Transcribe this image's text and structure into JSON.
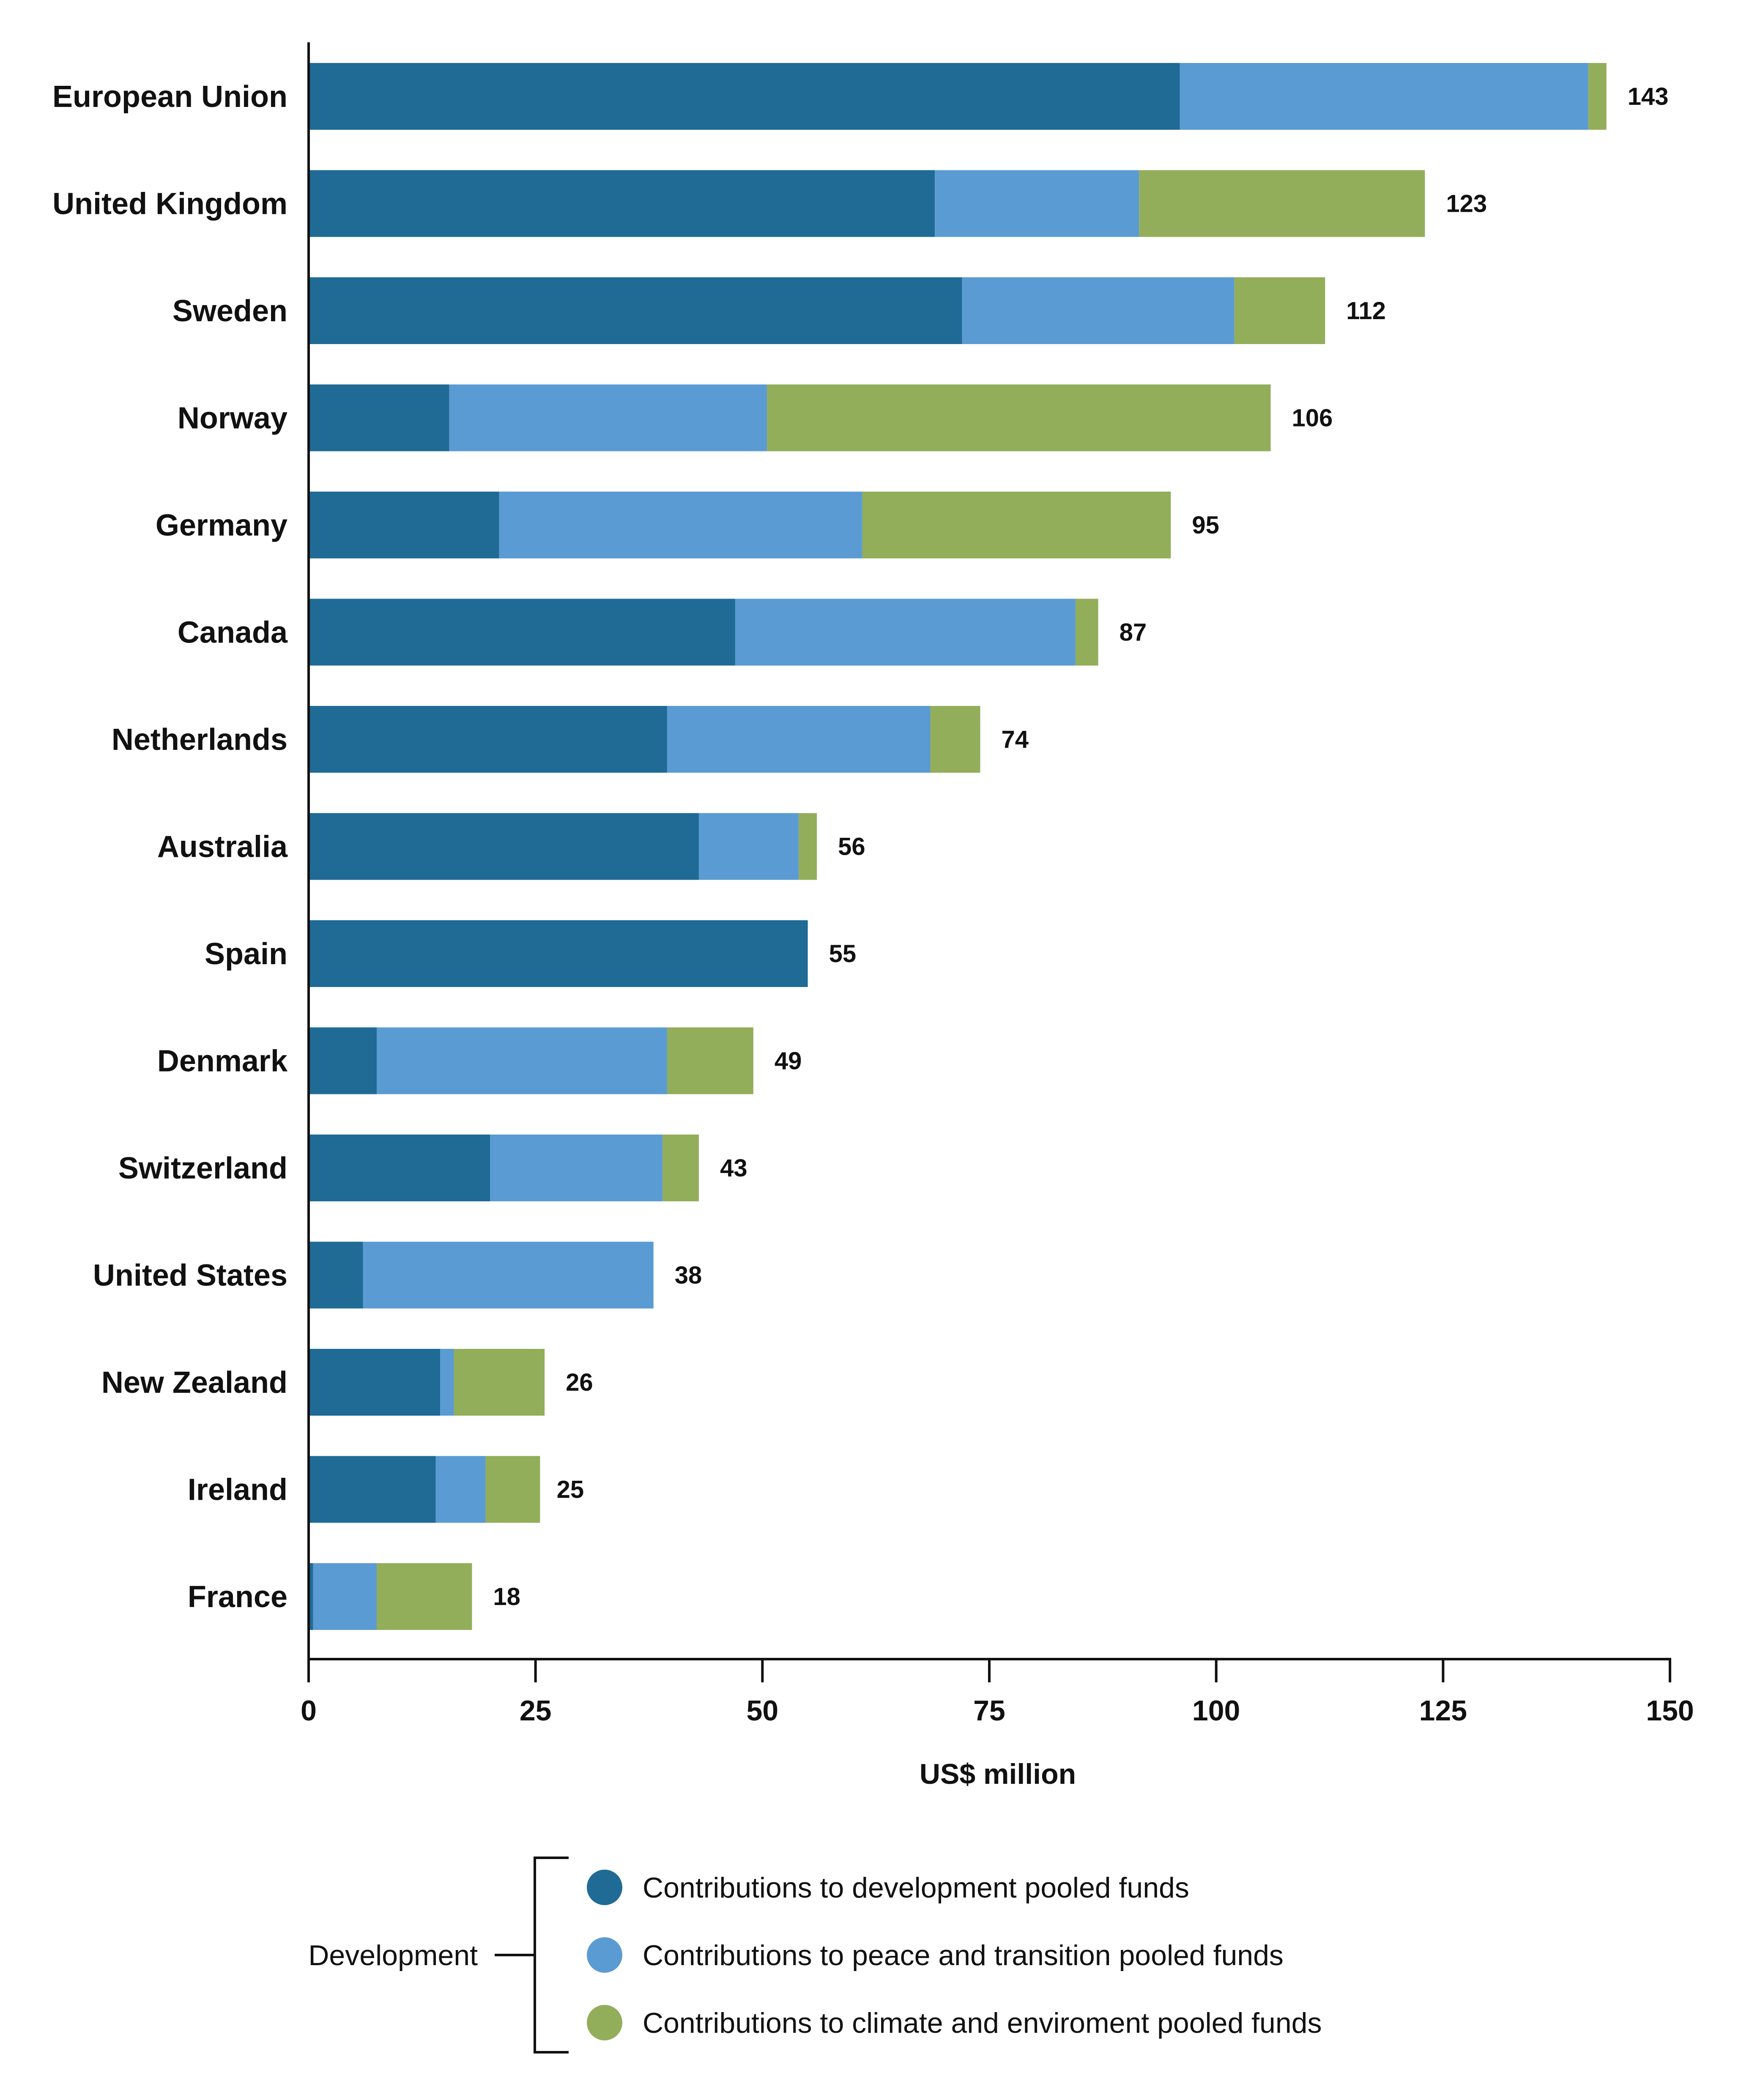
{
  "chart_data": {
    "type": "bar",
    "orientation": "horizontal",
    "stacked": true,
    "categories": [
      "European Union",
      "United Kingdom",
      "Sweden",
      "Norway",
      "Germany",
      "Canada",
      "Netherlands",
      "Australia",
      "Spain",
      "Denmark",
      "Switzerland",
      "United States",
      "New Zealand",
      "Ireland",
      "France"
    ],
    "series": [
      {
        "name": "Contributions to development pooled funds",
        "color": "#1f6b95",
        "values": [
          96,
          69,
          72,
          15.5,
          21,
          47,
          39.5,
          43,
          55,
          7.5,
          20,
          6,
          14.5,
          14,
          0.5
        ]
      },
      {
        "name": "Contributions to peace and transition pooled funds",
        "color": "#5b9bd3",
        "values": [
          45,
          22.5,
          30,
          35,
          40,
          37.5,
          29,
          11,
          0,
          32,
          19,
          32,
          1.5,
          5.5,
          7
        ]
      },
      {
        "name": "Contributions to climate and enviroment pooled funds",
        "color": "#92ae5a",
        "values": [
          2,
          31.5,
          10,
          55.5,
          34,
          2.5,
          5.5,
          2,
          0,
          9.5,
          4,
          0,
          10,
          6,
          10.5
        ]
      }
    ],
    "totals": [
      "143",
      "123",
      "112",
      "106",
      "95",
      "87",
      "74",
      "56",
      "55",
      "49",
      "43",
      "38",
      "26",
      "25",
      "18"
    ],
    "xlim": [
      0,
      150
    ],
    "xticks": [
      0,
      25,
      50,
      75,
      100,
      125,
      150
    ],
    "xtick_labels": [
      "0",
      "25",
      "50",
      "75",
      "100",
      "125",
      "150"
    ],
    "xlabel": "US$ million",
    "ylabel": "",
    "title": "",
    "grid": false,
    "legend": {
      "placement": "bottom",
      "group_label": "Development",
      "entries": [
        "Contributions to development pooled funds",
        "Contributions to peace and transition pooled funds",
        "Contributions to climate and enviroment pooled funds"
      ]
    }
  }
}
